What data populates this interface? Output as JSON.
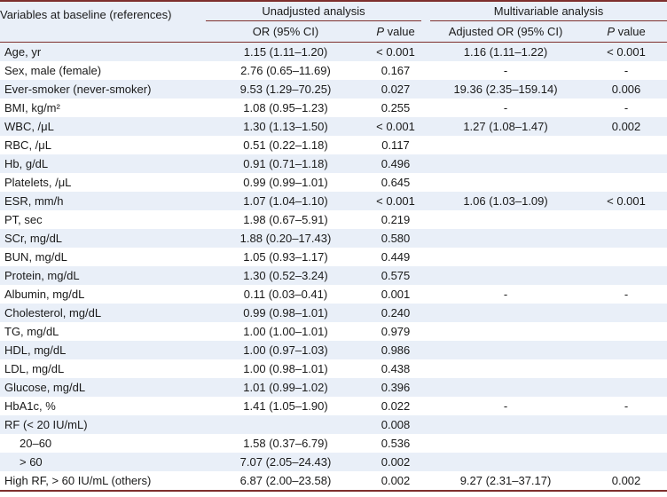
{
  "colors": {
    "rule": "#7e2f2d",
    "stripe": "#e9eff8",
    "text": "#1a1a1a"
  },
  "columns": {
    "variables": "Variables at baseline (references)",
    "unadjusted_group": "Unadjusted analysis",
    "multivariable_group": "Multivariable analysis",
    "or": "OR (95% CI)",
    "p_italic": "P",
    "p_rest": " value",
    "aor": "Adjusted OR (95% CI)"
  },
  "rows": [
    {
      "label": "Age, yr",
      "indent": false,
      "or": "1.15 (1.11–1.20)",
      "p": "< 0.001",
      "aor": "1.16 (1.11–1.22)",
      "ap": "< 0.001"
    },
    {
      "label": "Sex, male (female)",
      "indent": false,
      "or": "2.76 (0.65–11.69)",
      "p": "0.167",
      "aor": "-",
      "ap": "-"
    },
    {
      "label": "Ever-smoker (never-smoker)",
      "indent": false,
      "or": "9.53 (1.29–70.25)",
      "p": "0.027",
      "aor": "19.36 (2.35–159.14)",
      "ap": "0.006"
    },
    {
      "label": "BMI, kg/m²",
      "indent": false,
      "or": "1.08 (0.95–1.23)",
      "p": "0.255",
      "aor": "-",
      "ap": "-"
    },
    {
      "label": "WBC, /μL",
      "indent": false,
      "or": "1.30 (1.13–1.50)",
      "p": "< 0.001",
      "aor": "1.27 (1.08–1.47)",
      "ap": "0.002"
    },
    {
      "label": "RBC, /μL",
      "indent": false,
      "or": "0.51 (0.22–1.18)",
      "p": "0.117",
      "aor": "",
      "ap": ""
    },
    {
      "label": "Hb, g/dL",
      "indent": false,
      "or": "0.91 (0.71–1.18)",
      "p": "0.496",
      "aor": "",
      "ap": ""
    },
    {
      "label": "Platelets, /μL",
      "indent": false,
      "or": "0.99 (0.99–1.01)",
      "p": "0.645",
      "aor": "",
      "ap": ""
    },
    {
      "label": "ESR, mm/h",
      "indent": false,
      "or": "1.07 (1.04–1.10)",
      "p": "< 0.001",
      "aor": "1.06 (1.03–1.09)",
      "ap": "< 0.001"
    },
    {
      "label": "PT, sec",
      "indent": false,
      "or": "1.98 (0.67–5.91)",
      "p": "0.219",
      "aor": "",
      "ap": ""
    },
    {
      "label": "SCr, mg/dL",
      "indent": false,
      "or": "1.88 (0.20–17.43)",
      "p": "0.580",
      "aor": "",
      "ap": ""
    },
    {
      "label": "BUN, mg/dL",
      "indent": false,
      "or": "1.05 (0.93–1.17)",
      "p": "0.449",
      "aor": "",
      "ap": ""
    },
    {
      "label": "Protein, mg/dL",
      "indent": false,
      "or": "1.30 (0.52–3.24)",
      "p": "0.575",
      "aor": "",
      "ap": ""
    },
    {
      "label": "Albumin, mg/dL",
      "indent": false,
      "or": "0.11 (0.03–0.41)",
      "p": "0.001",
      "aor": "-",
      "ap": "-"
    },
    {
      "label": "Cholesterol, mg/dL",
      "indent": false,
      "or": "0.99 (0.98–1.01)",
      "p": "0.240",
      "aor": "",
      "ap": ""
    },
    {
      "label": "TG, mg/dL",
      "indent": false,
      "or": "1.00 (1.00–1.01)",
      "p": "0.979",
      "aor": "",
      "ap": ""
    },
    {
      "label": "HDL, mg/dL",
      "indent": false,
      "or": "1.00 (0.97–1.03)",
      "p": "0.986",
      "aor": "",
      "ap": ""
    },
    {
      "label": "LDL, mg/dL",
      "indent": false,
      "or": "1.00 (0.98–1.01)",
      "p": "0.438",
      "aor": "",
      "ap": ""
    },
    {
      "label": "Glucose, mg/dL",
      "indent": false,
      "or": "1.01 (0.99–1.02)",
      "p": "0.396",
      "aor": "",
      "ap": ""
    },
    {
      "label": "HbA1c, %",
      "indent": false,
      "or": "1.41 (1.05–1.90)",
      "p": "0.022",
      "aor": "-",
      "ap": "-"
    },
    {
      "label": "RF (< 20 IU/mL)",
      "indent": false,
      "or": "",
      "p": "0.008",
      "aor": "",
      "ap": ""
    },
    {
      "label": "20–60",
      "indent": true,
      "or": "1.58 (0.37–6.79)",
      "p": "0.536",
      "aor": "",
      "ap": ""
    },
    {
      "label": "> 60",
      "indent": true,
      "or": "7.07 (2.05–24.43)",
      "p": "0.002",
      "aor": "",
      "ap": ""
    },
    {
      "label": "High RF, > 60 IU/mL (others)",
      "indent": false,
      "or": "6.87 (2.00–23.58)",
      "p": "0.002",
      "aor": "9.27 (2.31–37.17)",
      "ap": "0.002"
    }
  ]
}
